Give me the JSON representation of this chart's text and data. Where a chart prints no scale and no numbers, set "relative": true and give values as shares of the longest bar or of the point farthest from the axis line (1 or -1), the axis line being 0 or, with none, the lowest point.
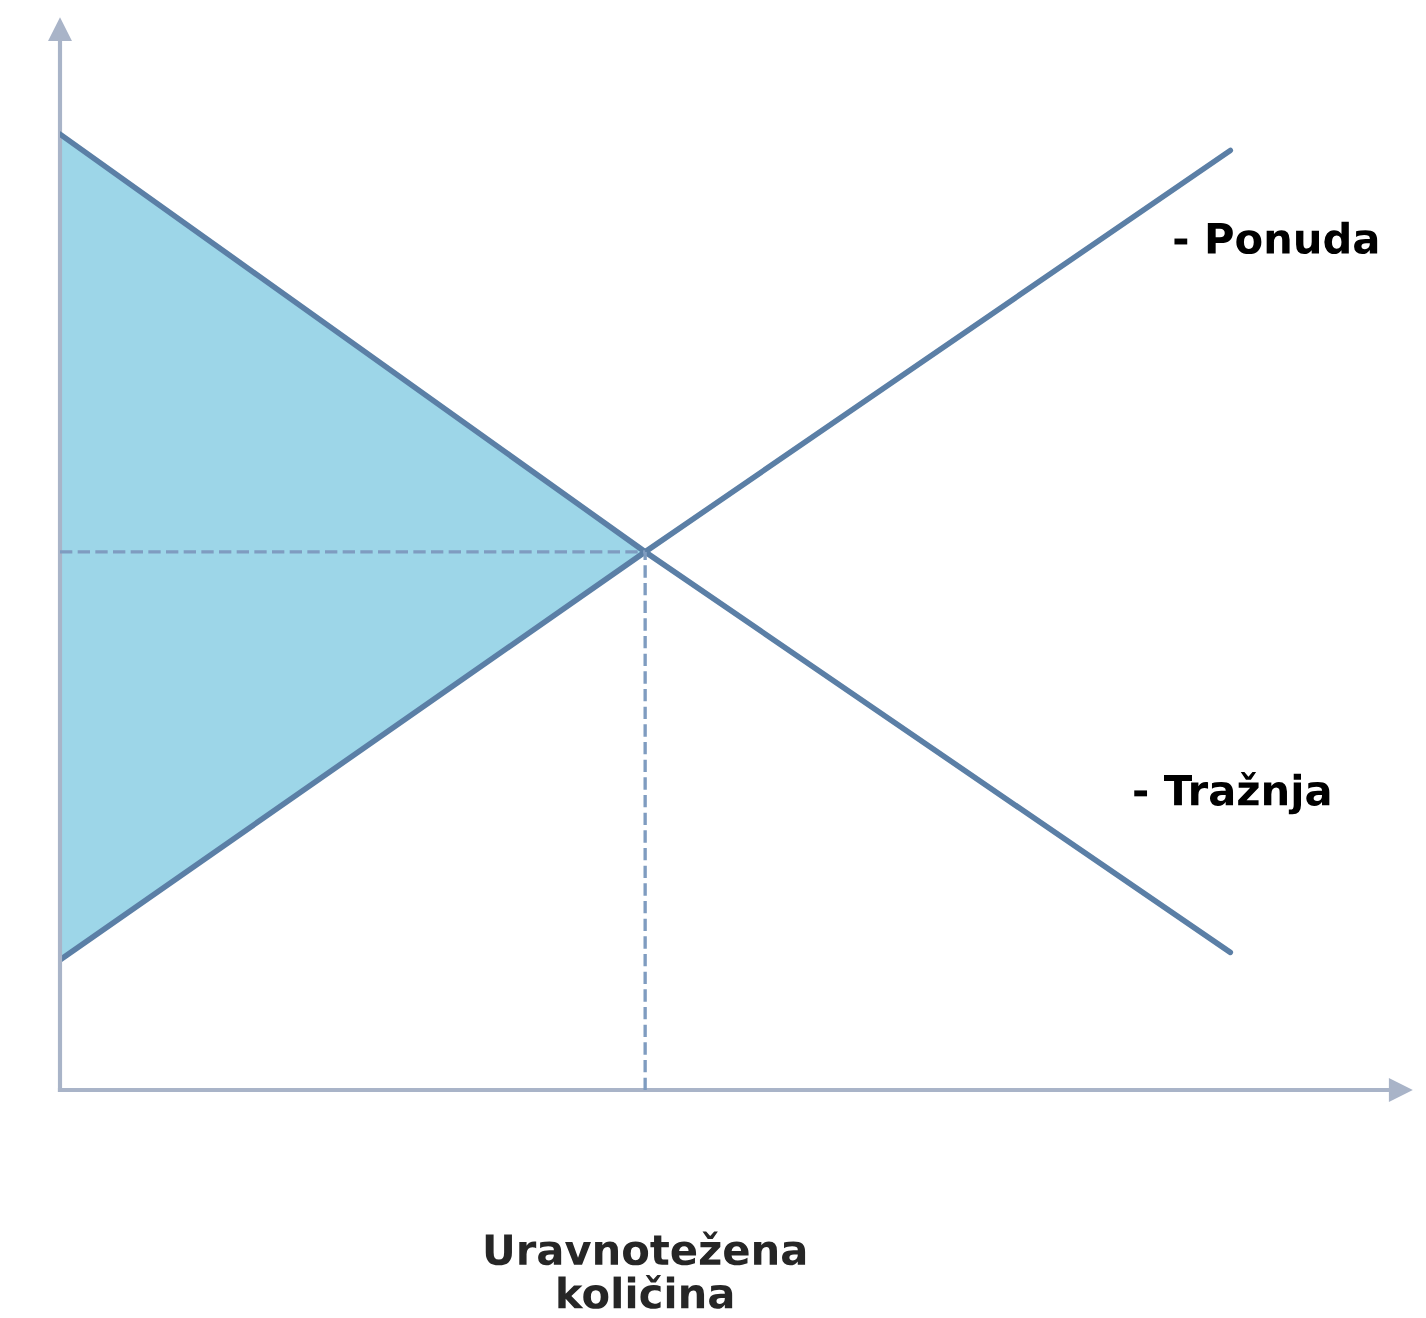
{
  "chart_data": {
    "type": "line",
    "relative": true,
    "categories": [
      null,
      null,
      null
    ],
    "xlabel": "Uravnotežena\nkoličina",
    "series": [
      {
        "name": "- Ponuda",
        "color": "#5b7fa6",
        "values": [
          0.136,
          0.563,
          0.983
        ]
      },
      {
        "name": "- Tražnja",
        "color": "#5b7fa6",
        "values": [
          1,
          0.563,
          0.144
        ],
        "lower": [
          0.136,
          0.563,
          null
        ],
        "upper": [
          1,
          0.563,
          null
        ]
      }
    ],
    "ref_lines": [
      {
        "axis": "y",
        "value": 0.563,
        "color": "#7f9cc0",
        "line_style": "dashed"
      }
    ],
    "marker": "none",
    "line_style": "solid",
    "legend": false
  }
}
